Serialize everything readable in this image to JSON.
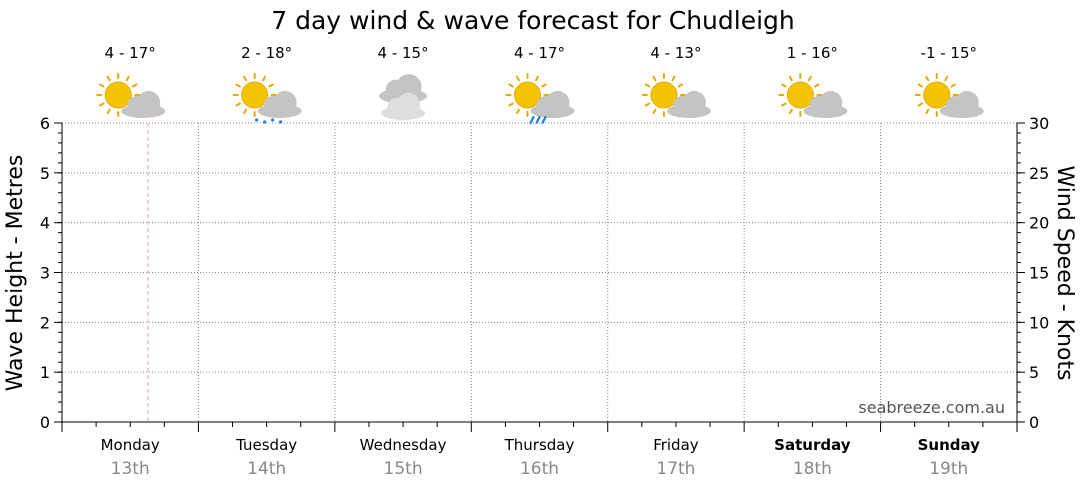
{
  "chart_data": {
    "type": "line",
    "title": "7 day wind & wave forecast for Chudleigh",
    "ylabel_left": "Wave Height - Metres",
    "ylabel_right": "Wind Speed - Knots",
    "ylim_left": [
      0,
      6
    ],
    "ylim_right": [
      0,
      30
    ],
    "yticks_left": [
      "0",
      "1",
      "2",
      "3",
      "4",
      "5",
      "6"
    ],
    "yticks_right": [
      "0",
      "5",
      "10",
      "15",
      "20",
      "25",
      "30"
    ],
    "grid": true,
    "current_time_marker": "Monday 13th",
    "days": [
      {
        "name": "Monday",
        "date": "13th",
        "temp": "4 - 17°",
        "icon": "partly-cloudy-icon",
        "bold": false
      },
      {
        "name": "Tuesday",
        "date": "14th",
        "temp": "2 - 18°",
        "icon": "partly-cloudy-showers-icon",
        "bold": false
      },
      {
        "name": "Wednesday",
        "date": "15th",
        "temp": "4 - 15°",
        "icon": "cloudy-icon",
        "bold": false
      },
      {
        "name": "Thursday",
        "date": "16th",
        "temp": "4 - 17°",
        "icon": "partly-cloudy-rain-icon",
        "bold": false
      },
      {
        "name": "Friday",
        "date": "17th",
        "temp": "4 - 13°",
        "icon": "partly-cloudy-icon",
        "bold": false
      },
      {
        "name": "Saturday",
        "date": "18th",
        "temp": "1 - 16°",
        "icon": "partly-cloudy-icon",
        "bold": true
      },
      {
        "name": "Sunday",
        "date": "19th",
        "temp": "-1 - 15°",
        "icon": "partly-cloudy-icon",
        "bold": true
      }
    ],
    "series": []
  },
  "watermark": "seabreeze.com.au",
  "colors": {
    "sun": "#f5c400",
    "sun_edge": "#e8a800",
    "cloud": "#c4c4c4",
    "cloud_light": "#dedede",
    "rain": "#1e7fe0",
    "grid": "#888888",
    "now_marker": "#f2a0a0"
  }
}
